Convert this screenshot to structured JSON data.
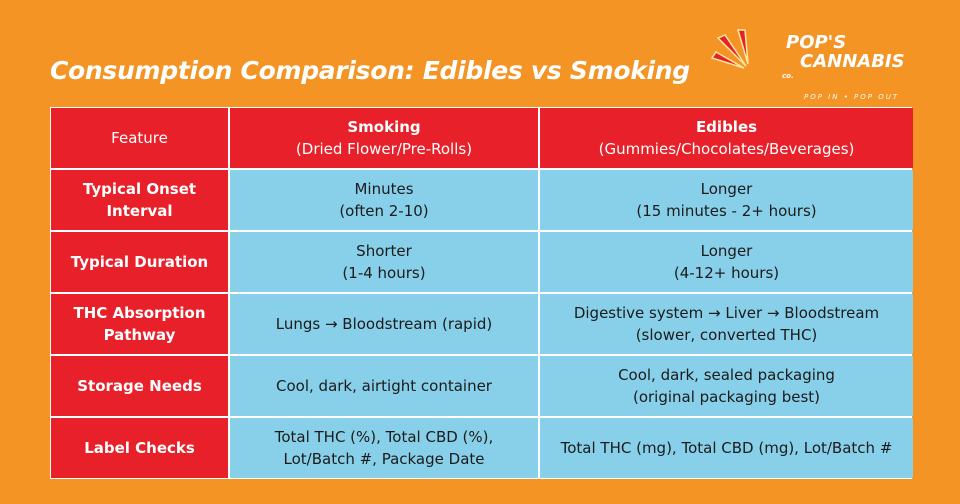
{
  "header": {
    "title": "Consumption Comparison: Edibles vs Smoking",
    "logo": {
      "line1": "POP'S",
      "line2": "CANNABIS",
      "suffix": "co.",
      "tagline": "POP IN • POP OUT"
    }
  },
  "table": {
    "columns": [
      [
        "Feature"
      ],
      [
        "Smoking",
        "(Dried Flower/Pre-Rolls)"
      ],
      [
        "Edibles",
        "(Gummies/Chocolates/Beverages)"
      ]
    ],
    "rows": [
      [
        [
          "Typical Onset",
          "Interval"
        ],
        [
          "Minutes",
          "(often 2-10)"
        ],
        [
          "Longer",
          "(15 minutes - 2+ hours)"
        ]
      ],
      [
        [
          "Typical Duration"
        ],
        [
          "Shorter",
          "(1-4 hours)"
        ],
        [
          "Longer",
          "(4-12+ hours)"
        ]
      ],
      [
        [
          "THC Absorption",
          "Pathway"
        ],
        [
          "Lungs → Bloodstream (rapid)"
        ],
        [
          "Digestive system → Liver → Bloodstream",
          "(slower, converted THC)"
        ]
      ],
      [
        [
          "Storage Needs"
        ],
        [
          "Cool, dark, airtight container"
        ],
        [
          "Cool, dark, sealed packaging",
          "(original packaging best)"
        ]
      ],
      [
        [
          "Label Checks"
        ],
        [
          "Total THC (%), Total CBD (%),",
          "Lot/Batch #, Package Date"
        ],
        [
          "Total THC (mg), Total CBD (mg), Lot/Batch #"
        ]
      ]
    ]
  }
}
